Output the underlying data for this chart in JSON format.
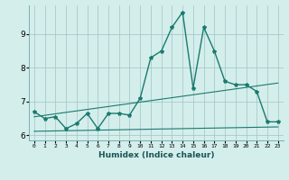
{
  "xlabel": "Humidex (Indice chaleur)",
  "x_data": [
    0,
    1,
    2,
    3,
    4,
    5,
    6,
    7,
    8,
    9,
    10,
    11,
    12,
    13,
    14,
    15,
    16,
    17,
    18,
    19,
    20,
    21,
    22,
    23
  ],
  "y_main": [
    6.7,
    6.5,
    6.55,
    6.2,
    6.35,
    6.65,
    6.2,
    6.65,
    6.65,
    6.6,
    7.1,
    8.3,
    8.5,
    9.2,
    9.65,
    7.4,
    9.2,
    8.5,
    7.6,
    7.5,
    7.5,
    7.3,
    6.4,
    6.4
  ],
  "upper_trend": [
    6.55,
    7.55
  ],
  "lower_trend": [
    6.12,
    6.25
  ],
  "line_color": "#1a7a6e",
  "bg_color": "#d4eeec",
  "grid_color": "#a0c4c4",
  "ylim": [
    5.85,
    9.85
  ],
  "yticks": [
    6,
    7,
    8,
    9
  ],
  "xlim": [
    -0.5,
    23.5
  ]
}
